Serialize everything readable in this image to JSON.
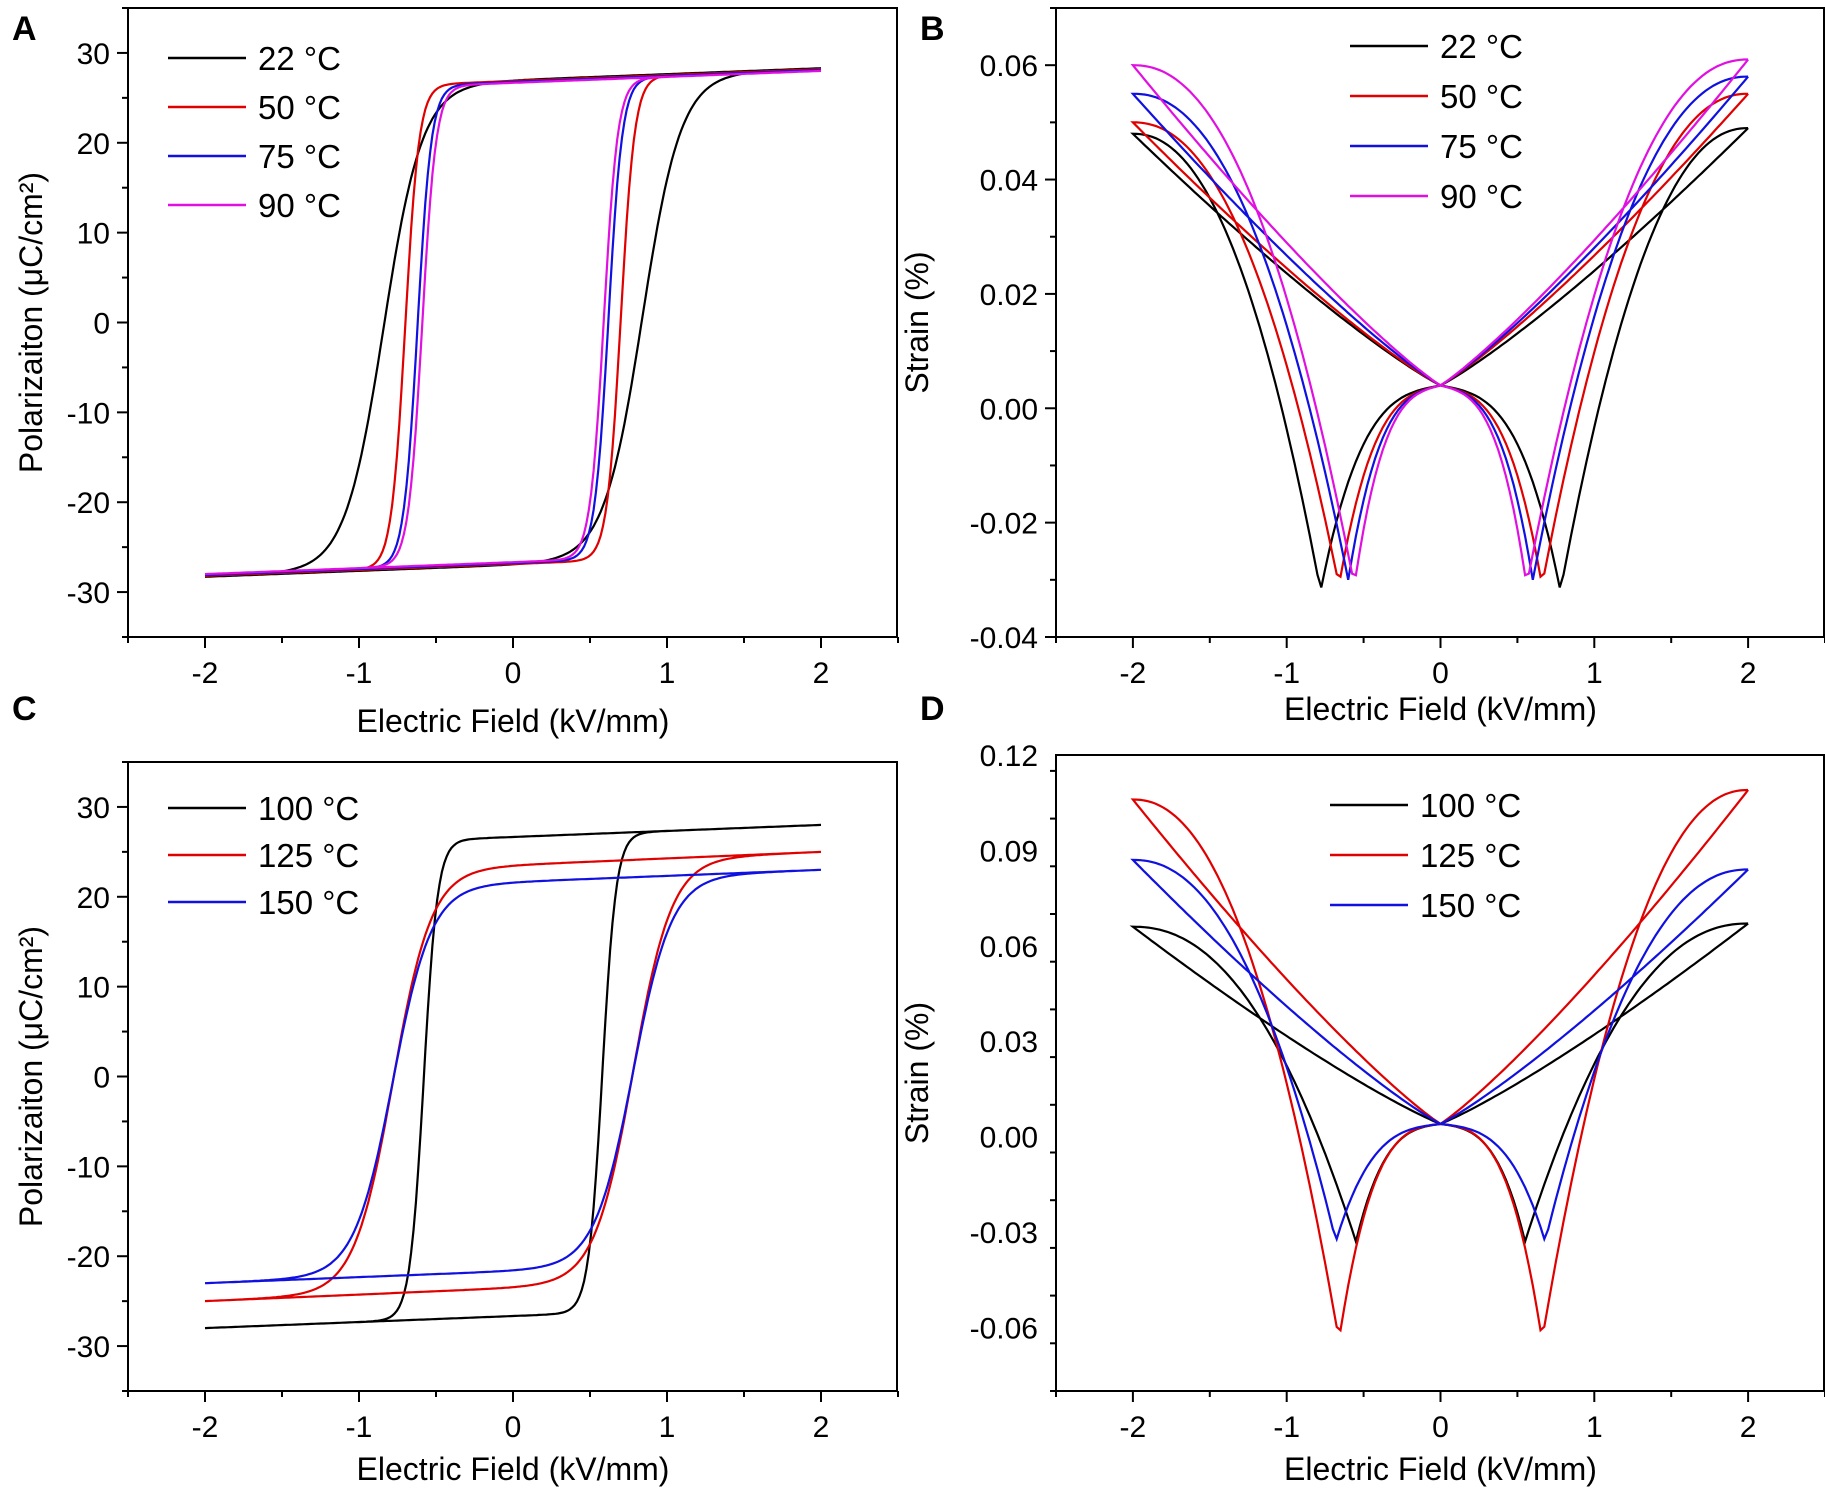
{
  "chart_data": [
    {
      "panel": "A",
      "type": "line",
      "quantity": "polarization",
      "xlabel": "Electric Field (kV/mm)",
      "ylabel": "Polarizaiton (μC/cm²)",
      "xlim": [
        -2.5,
        2.5
      ],
      "ylim": [
        -35,
        35
      ],
      "xticks": [
        "-2",
        "-1",
        "0",
        "1",
        "2"
      ],
      "yticks": [
        "-30",
        "-20",
        "-10",
        "0",
        "10",
        "20",
        "30"
      ],
      "legend_position": "top-left",
      "series": [
        {
          "name": "22 °C",
          "color": "#000000",
          "Emax": 2.0,
          "Pmax": 28.3,
          "Ec": 0.84,
          "Pr": 25.7
        },
        {
          "name": "50 °C",
          "color": "#e00000",
          "Emax": 2.0,
          "Pmax": 28.2,
          "Ec": 0.7,
          "Pr": 25.6
        },
        {
          "name": "75 °C",
          "color": "#1010e0",
          "Emax": 2.0,
          "Pmax": 28.1,
          "Ec": 0.62,
          "Pr": 25.4
        },
        {
          "name": "90 °C",
          "color": "#e010e0",
          "Emax": 2.0,
          "Pmax": 28.0,
          "Ec": 0.59,
          "Pr": 25.3
        }
      ]
    },
    {
      "panel": "B",
      "type": "line",
      "quantity": "strain",
      "xlabel": "Electric Field (kV/mm)",
      "ylabel": "Strain (%)",
      "xlim": [
        -2.5,
        2.5
      ],
      "ylim": [
        -0.04,
        0.07
      ],
      "xticks": [
        "-2",
        "-1",
        "0",
        "1",
        "2"
      ],
      "yticks": [
        "-0.04",
        "-0.02",
        "0.00",
        "0.02",
        "0.04",
        "0.06"
      ],
      "legend_position": "top-center",
      "series": [
        {
          "name": "22 °C",
          "color": "#000000",
          "Smax_neg": 0.048,
          "Smax_pos": 0.049,
          "Smin": -0.032,
          "Ec": 0.78,
          "mid": 0.026
        },
        {
          "name": "50 °C",
          "color": "#e00000",
          "Smax_neg": 0.05,
          "Smax_pos": 0.055,
          "Smin": -0.031,
          "Ec": 0.66,
          "mid": 0.026
        },
        {
          "name": "75 °C",
          "color": "#1010e0",
          "Smax_neg": 0.055,
          "Smax_pos": 0.058,
          "Smin": -0.03,
          "Ec": 0.6,
          "mid": 0.03
        },
        {
          "name": "90 °C",
          "color": "#e010e0",
          "Smax_neg": 0.06,
          "Smax_pos": 0.061,
          "Smin": -0.031,
          "Ec": 0.56,
          "mid": 0.033
        }
      ]
    },
    {
      "panel": "C",
      "type": "line",
      "quantity": "polarization",
      "xlabel": "Electric Field (kV/mm)",
      "ylabel": "Polarizaiton (μC/cm²)",
      "xlim": [
        -2.5,
        2.5
      ],
      "ylim": [
        -35,
        35
      ],
      "xticks": [
        "-2",
        "-1",
        "0",
        "1",
        "2"
      ],
      "yticks": [
        "-30",
        "-20",
        "-10",
        "0",
        "10",
        "20",
        "30"
      ],
      "legend_position": "top-left",
      "series": [
        {
          "name": "100 °C",
          "color": "#000000",
          "Emax": 2.0,
          "Pmax": 28.0,
          "Ec": 0.58,
          "Pr": 25.0
        },
        {
          "name": "125 °C",
          "color": "#e00000",
          "Emax": 2.0,
          "Pmax": 25.0,
          "Ec": 0.78,
          "Pr": 20.5
        },
        {
          "name": "150 °C",
          "color": "#1010e0",
          "Emax": 2.0,
          "Pmax": 23.0,
          "Ec": 0.78,
          "Pr": 20.5
        }
      ]
    },
    {
      "panel": "D",
      "type": "line",
      "quantity": "strain",
      "xlabel": "Electric Field (kV/mm)",
      "ylabel": "Strain (%)",
      "xlim": [
        -2.5,
        2.5
      ],
      "ylim": [
        -0.08,
        0.12
      ],
      "xticks": [
        "-2",
        "-1",
        "0",
        "1",
        "2"
      ],
      "yticks": [
        "-0.06",
        "-0.03",
        "0.00",
        "0.03",
        "0.06",
        "0.09",
        "0.12"
      ],
      "legend_position": "top-center",
      "series": [
        {
          "name": "100 °C",
          "color": "#000000",
          "Smax_neg": 0.066,
          "Smax_pos": 0.067,
          "Smin": -0.033,
          "Ec": 0.55,
          "mid": 0.035
        },
        {
          "name": "125 °C",
          "color": "#e00000",
          "Smax_neg": 0.106,
          "Smax_pos": 0.109,
          "Smin": -0.064,
          "Ec": 0.66,
          "mid": 0.055
        },
        {
          "name": "150 °C",
          "color": "#1010e0",
          "Smax_neg": 0.087,
          "Smax_pos": 0.084,
          "Smin": -0.033,
          "Ec": 0.68,
          "mid": 0.04
        }
      ]
    }
  ]
}
